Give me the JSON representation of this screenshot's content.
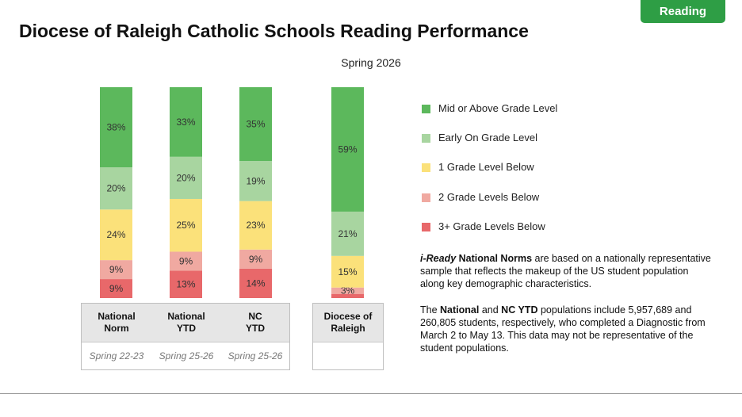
{
  "badge": "Reading",
  "title": "Diocese of Raleigh Catholic Schools Reading Performance",
  "chart_data": {
    "type": "bar",
    "stacked": true,
    "subtitle": "Spring 2026",
    "categories": [
      {
        "name": "National\nNorm",
        "period": "Spring 22-23"
      },
      {
        "name": "National\nYTD",
        "period": "Spring 25-26"
      },
      {
        "name": "NC\nYTD",
        "period": "Spring 25-26"
      },
      {
        "name": "Diocese of\nRaleigh",
        "period": ""
      }
    ],
    "series": [
      {
        "name": "Mid or Above Grade Level",
        "color": "#5cb85c",
        "values": [
          38,
          33,
          35,
          59
        ],
        "labels": [
          "38%",
          "33%",
          "35%",
          "59%"
        ]
      },
      {
        "name": "Early On Grade Level",
        "color": "#a8d5a0",
        "values": [
          20,
          20,
          19,
          21
        ],
        "labels": [
          "20%",
          "20%",
          "19%",
          "21%"
        ]
      },
      {
        "name": "1 Grade Level Below",
        "color": "#fbe17a",
        "values": [
          24,
          25,
          23,
          15
        ],
        "labels": [
          "24%",
          "25%",
          "23%",
          "15%"
        ]
      },
      {
        "name": "2 Grade Levels Below",
        "color": "#f0a9a1",
        "values": [
          9,
          9,
          9,
          3
        ],
        "labels": [
          "9%",
          "9%",
          "9%",
          "3%"
        ]
      },
      {
        "name": "3+ Grade Levels Below",
        "color": "#e8686a",
        "values": [
          9,
          13,
          14,
          2
        ],
        "labels": [
          "9%",
          "13%",
          "14%",
          ""
        ]
      }
    ],
    "ylim": [
      0,
      100
    ],
    "legend_position": "right"
  },
  "notes": {
    "note1_bold": "i-Ready",
    "note1_bold2": "National Norms",
    "note1_rest": "are based on a nationally representative sample that reflects the makeup of the US student population along key demographic characteristics.",
    "note2_a": "The",
    "note2_b": "National",
    "note2_c": "and",
    "note2_d": "NC YTD",
    "note2_e": "populations include 5,957,689 and 260,805 students, respectively, who completed a Diagnostic from March 2 to May 13. This data may not be representative of the student populations."
  }
}
